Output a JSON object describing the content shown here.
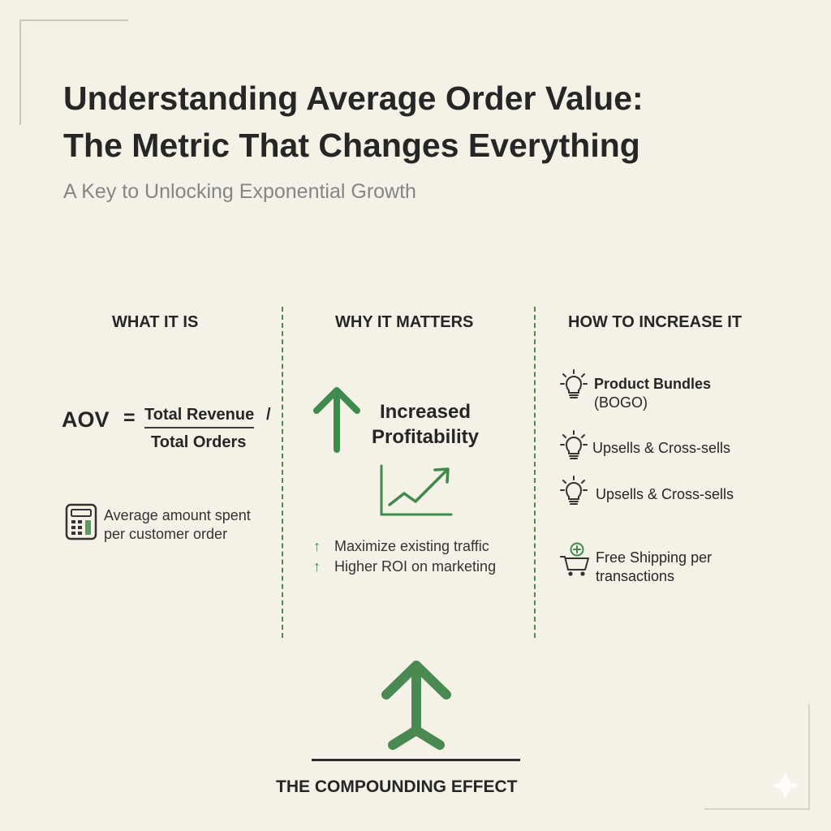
{
  "header": {
    "title_line1": "Understanding Average Order Value:",
    "title_line2": "The Metric That Changes Everything",
    "subtitle": "A Key to Unlocking Exponential Growth"
  },
  "columns": {
    "what": {
      "heading": "WHAT IT IS",
      "formula": {
        "lhs": "AOV",
        "equals": "=",
        "numerator": "Total Revenue",
        "slash": "/",
        "denominator": "Total Orders"
      },
      "icon": "calculator-icon",
      "description_line1": "Average amount spent",
      "description_line2": "per customer order"
    },
    "why": {
      "heading": "WHY IT MATTERS",
      "icon": "up-arrow-icon",
      "highlight_line1": "Increased",
      "highlight_line2": "Profitability",
      "chart_icon": "growth-chart-icon",
      "benefits": [
        {
          "icon": "small-up-arrow-icon",
          "text": "Maximize existing traffic"
        },
        {
          "icon": "small-up-arrow-icon",
          "text": "Higher ROI on marketing"
        }
      ]
    },
    "how": {
      "heading": "HOW TO INCREASE IT",
      "tips": [
        {
          "icon": "lightbulb-icon",
          "line1": "Product Bundles",
          "line2": "(BOGO)"
        },
        {
          "icon": "lightbulb-icon",
          "line1": "Upsells & Cross-sells"
        },
        {
          "icon": "lightbulb-icon",
          "line1": "Upsells & Cross-sells"
        },
        {
          "icon": "shopping-cart-plus-icon",
          "line1": "Free Shipping per",
          "line2": "transactions"
        }
      ]
    }
  },
  "footer": {
    "icon": "compounding-arrow-icon",
    "label": "THE COMPOUNDING EFFECT"
  },
  "colors": {
    "background": "#f4f1e7",
    "accent_green": "#3f8a4c",
    "text_dark": "#262626",
    "text_muted": "#858585"
  }
}
